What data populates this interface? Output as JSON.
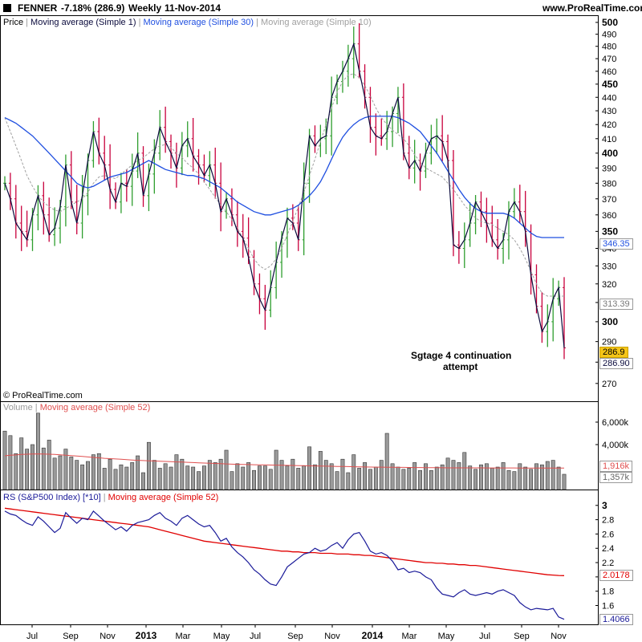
{
  "header": {
    "symbol": "FENNER",
    "change": "-7.18% (286.9)",
    "period": "Weekly",
    "date": "11-Nov-2014",
    "site": "www.ProRealTime.com",
    "icon": "square-logo-icon"
  },
  "price_panel": {
    "legend": [
      "Price",
      "Moving average (Simple 1)",
      "Moving average (Simple 30)",
      "Moving average (Simple 10)"
    ],
    "copyright": "© ProRealTime.com",
    "annotation_line1": "Sgtage 4 continuation",
    "annotation_line2": "attempt",
    "tag_last_close": "286.9",
    "tag_close_value": "286.90",
    "tag_ma30": "346.35",
    "tag_ma10": "313.39"
  },
  "volume_panel": {
    "legend": [
      "Volume",
      "Moving average (Simple 52)"
    ],
    "tag_ma52": "1,916k",
    "tag_volume": "1,357k"
  },
  "rs_panel": {
    "legend": [
      "RS (S&P500 Index) [*10]",
      "Moving average (Simple 52)"
    ],
    "tag_ma52": "2.0178",
    "tag_rs": "1.4066"
  },
  "x_axis_labels": [
    "Jul",
    "Sep",
    "Nov",
    "2013",
    "Mar",
    "May",
    "Jul",
    "Sep",
    "Nov",
    "2014",
    "Mar",
    "May",
    "Jul",
    "Sep",
    "Nov"
  ],
  "colors": {
    "up_bar": "#2e9e2e",
    "down_bar": "#c8003c",
    "ma1": "#0a0a3c",
    "ma30": "#1f4fe0",
    "ma10": "#a0a0a0",
    "vol_ma": "#e05050",
    "rs_line": "#1a1a99",
    "rs_ma": "#e00000",
    "last_tag": "#f5c518"
  },
  "chart_data": [
    {
      "type": "line",
      "panel": "price",
      "title": "FENNER",
      "y_ticks": [
        270,
        280,
        290,
        300,
        310,
        320,
        330,
        340,
        350,
        360,
        370,
        380,
        390,
        400,
        410,
        420,
        430,
        440,
        450,
        460,
        470,
        480,
        490,
        500
      ],
      "ylim": [
        263,
        502
      ],
      "y_scale": "log",
      "series": [
        {
          "name": "Moving average (Simple 1)",
          "values": [
            380,
            370,
            355,
            350,
            345,
            360,
            372,
            360,
            348,
            352,
            365,
            392,
            368,
            355,
            372,
            395,
            415,
            400,
            392,
            376,
            368,
            380,
            378,
            388,
            400,
            372,
            386,
            400,
            418,
            408,
            400,
            390,
            405,
            410,
            398,
            392,
            385,
            392,
            380,
            362,
            370,
            360,
            350,
            346,
            335,
            320,
            312,
            306,
            318,
            332,
            346,
            358,
            355,
            345,
            380,
            412,
            405,
            410,
            412,
            440,
            452,
            460,
            470,
            482,
            460,
            440,
            418,
            412,
            410,
            415,
            428,
            440,
            400,
            390,
            395,
            388,
            400,
            410,
            412,
            408,
            395,
            342,
            340,
            345,
            355,
            368,
            362,
            355,
            345,
            340,
            345,
            362,
            368,
            362,
            350,
            325,
            308,
            295,
            300,
            312,
            318,
            286.9
          ]
        },
        {
          "name": "Moving average (Simple 30)",
          "values": [
            425,
            423,
            421,
            418,
            415,
            412,
            408,
            404,
            400,
            396,
            392,
            388,
            384,
            380,
            378,
            377,
            378,
            380,
            382,
            384,
            385,
            386,
            387,
            389,
            391,
            393,
            395,
            393,
            391,
            389,
            388,
            387,
            386,
            385,
            385,
            384,
            383,
            381,
            379,
            377,
            374,
            371,
            368,
            366,
            364,
            362,
            361,
            360,
            360,
            361,
            362,
            363,
            364,
            366,
            369,
            372,
            376,
            381,
            388,
            396,
            404,
            411,
            416,
            420,
            423,
            425,
            426,
            426,
            426,
            426,
            426,
            425,
            423,
            421,
            418,
            415,
            410,
            405,
            400,
            394,
            388,
            382,
            376,
            371,
            367,
            364,
            362,
            361,
            361,
            361,
            361,
            360,
            358,
            355,
            352,
            349,
            347,
            346.35,
            346.35,
            346.35,
            346.35,
            346.35
          ]
        },
        {
          "name": "Moving average (Simple 10)",
          "values": [
            425,
            415,
            405,
            395,
            385,
            378,
            372,
            368,
            365,
            363,
            362,
            364,
            366,
            368,
            370,
            374,
            380,
            384,
            385,
            384,
            383,
            386,
            389,
            392,
            395,
            397,
            400,
            403,
            405,
            406,
            404,
            400,
            397,
            393,
            390,
            386,
            381,
            376,
            371,
            366,
            362,
            357,
            352,
            346,
            340,
            334,
            330,
            328,
            330,
            334,
            340,
            348,
            356,
            365,
            374,
            385,
            396,
            408,
            420,
            432,
            444,
            452,
            457,
            458,
            455,
            449,
            441,
            432,
            425,
            420,
            416,
            413,
            410,
            405,
            399,
            394,
            390,
            388,
            386,
            384,
            380,
            376,
            371,
            366,
            362,
            358,
            356,
            355,
            354,
            352,
            350,
            348,
            345,
            340,
            334,
            327,
            320,
            315,
            313.39,
            313.39,
            313.39,
            313.39
          ]
        }
      ]
    },
    {
      "type": "bar",
      "panel": "volume",
      "y_ticks_labels": [
        "4,000k",
        "6,000k"
      ],
      "y_ticks": [
        4000,
        6000
      ],
      "ylim": [
        0,
        7000
      ],
      "series": [
        {
          "name": "Volume",
          "values": [
            5200,
            4800,
            3200,
            4600,
            3600,
            4000,
            6800,
            3700,
            4400,
            2800,
            3000,
            3600,
            2900,
            2600,
            2200,
            2500,
            3100,
            3200,
            1900,
            2700,
            1800,
            2200,
            2000,
            2400,
            3000,
            1500,
            4200,
            2600,
            1900,
            2300,
            2000,
            3100,
            2700,
            2100,
            2000,
            1600,
            2100,
            2600,
            2400,
            2700,
            3500,
            1600,
            2300,
            2000,
            2400,
            1700,
            2100,
            2100,
            1800,
            3500,
            2600,
            2100,
            2700,
            1900,
            2100,
            3800,
            2200,
            3400,
            2600,
            2300,
            1600,
            2700,
            1500,
            3100,
            1900,
            2400,
            1800,
            2000,
            2600,
            5000,
            2300,
            2000,
            1800,
            1900,
            2400,
            1700,
            2300,
            1700,
            2000,
            2200,
            2800,
            2600,
            2400,
            3300,
            2100,
            1800,
            2200,
            2300,
            1900,
            2000,
            2400,
            1700,
            1600,
            2300,
            2000,
            1800,
            2300,
            2200,
            2500,
            2600,
            2000,
            1357
          ]
        },
        {
          "name": "Moving average (Simple 52)",
          "values": [
            3000,
            3050,
            3080,
            3120,
            3140,
            3160,
            3170,
            3160,
            3140,
            3120,
            3090,
            3050,
            3020,
            2980,
            2940,
            2900,
            2860,
            2820,
            2780,
            2750,
            2720,
            2690,
            2660,
            2630,
            2600,
            2580,
            2560,
            2540,
            2520,
            2500,
            2480,
            2460,
            2440,
            2420,
            2400,
            2380,
            2360,
            2340,
            2320,
            2300,
            2280,
            2260,
            2240,
            2230,
            2220,
            2210,
            2200,
            2190,
            2180,
            2170,
            2160,
            2150,
            2140,
            2130,
            2120,
            2110,
            2100,
            2090,
            2080,
            2070,
            2060,
            2050,
            2040,
            2030,
            2020,
            2010,
            2000,
            1995,
            1990,
            1985,
            1980,
            1975,
            1970,
            1965,
            1960,
            1955,
            1950,
            1945,
            1940,
            1935,
            1930,
            1930,
            1930,
            1930,
            1930,
            1928,
            1926,
            1924,
            1922,
            1920,
            1920,
            1918,
            1918,
            1916,
            1916,
            1916,
            1916,
            1916,
            1916,
            1916,
            1916,
            1916
          ]
        }
      ]
    },
    {
      "type": "line",
      "panel": "rs",
      "y_ticks": [
        1.6,
        1.8,
        2.0,
        2.2,
        2.4,
        2.6,
        2.8,
        3
      ],
      "ylim": [
        1.37,
        3.02
      ],
      "series": [
        {
          "name": "RS (S&P500 Index) [*10]",
          "values": [
            2.92,
            2.88,
            2.86,
            2.8,
            2.75,
            2.72,
            2.84,
            2.78,
            2.7,
            2.62,
            2.68,
            2.9,
            2.82,
            2.75,
            2.82,
            2.8,
            2.92,
            2.85,
            2.78,
            2.72,
            2.66,
            2.7,
            2.64,
            2.72,
            2.76,
            2.78,
            2.8,
            2.86,
            2.9,
            2.82,
            2.78,
            2.72,
            2.82,
            2.86,
            2.8,
            2.74,
            2.7,
            2.72,
            2.62,
            2.5,
            2.54,
            2.42,
            2.34,
            2.28,
            2.2,
            2.1,
            2.04,
            1.96,
            1.9,
            1.88,
            2.0,
            2.14,
            2.2,
            2.26,
            2.32,
            2.34,
            2.4,
            2.36,
            2.38,
            2.44,
            2.48,
            2.4,
            2.52,
            2.6,
            2.62,
            2.5,
            2.36,
            2.32,
            2.34,
            2.3,
            2.22,
            2.1,
            2.12,
            2.06,
            2.08,
            2.06,
            2.0,
            1.96,
            1.84,
            1.76,
            1.74,
            1.72,
            1.78,
            1.82,
            1.76,
            1.74,
            1.76,
            1.78,
            1.76,
            1.8,
            1.82,
            1.78,
            1.74,
            1.64,
            1.58,
            1.54,
            1.56,
            1.55,
            1.54,
            1.56,
            1.44,
            1.4066
          ]
        },
        {
          "name": "Moving average (Simple 52)",
          "values": [
            2.96,
            2.95,
            2.94,
            2.93,
            2.92,
            2.91,
            2.9,
            2.89,
            2.88,
            2.87,
            2.86,
            2.85,
            2.84,
            2.83,
            2.82,
            2.81,
            2.8,
            2.79,
            2.78,
            2.77,
            2.76,
            2.75,
            2.74,
            2.73,
            2.72,
            2.71,
            2.7,
            2.68,
            2.66,
            2.64,
            2.62,
            2.6,
            2.58,
            2.56,
            2.54,
            2.52,
            2.5,
            2.49,
            2.48,
            2.47,
            2.46,
            2.45,
            2.44,
            2.43,
            2.42,
            2.41,
            2.4,
            2.39,
            2.38,
            2.37,
            2.36,
            2.36,
            2.35,
            2.35,
            2.34,
            2.34,
            2.34,
            2.33,
            2.33,
            2.33,
            2.32,
            2.32,
            2.32,
            2.31,
            2.31,
            2.3,
            2.3,
            2.29,
            2.28,
            2.27,
            2.26,
            2.25,
            2.24,
            2.23,
            2.22,
            2.21,
            2.2,
            2.2,
            2.19,
            2.19,
            2.18,
            2.18,
            2.17,
            2.17,
            2.16,
            2.16,
            2.15,
            2.14,
            2.13,
            2.12,
            2.11,
            2.1,
            2.09,
            2.08,
            2.07,
            2.06,
            2.05,
            2.04,
            2.03,
            2.025,
            2.02,
            2.0178
          ]
        }
      ]
    }
  ]
}
